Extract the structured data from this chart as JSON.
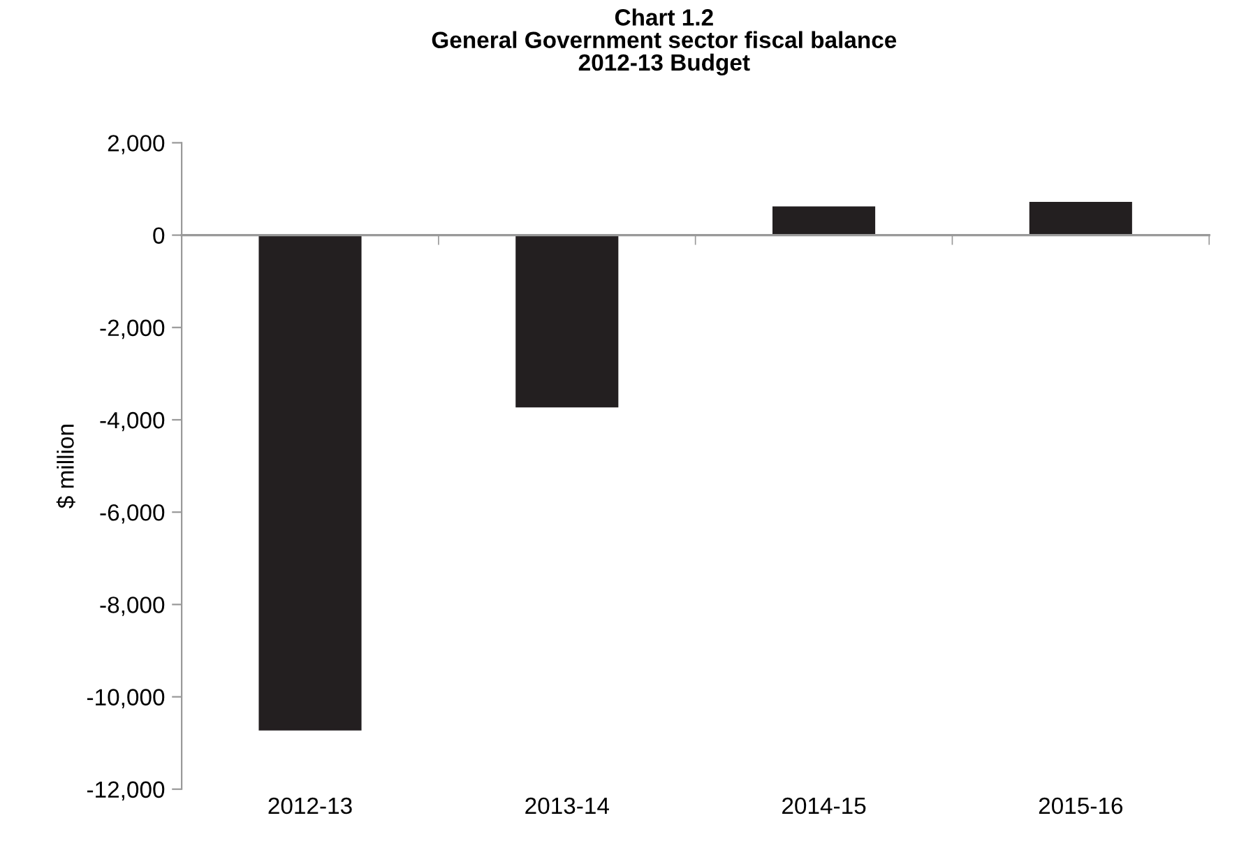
{
  "chart_data": {
    "type": "bar",
    "title": "Chart 1.2\nGeneral Government sector fiscal balance\n2012-13 Budget",
    "ylabel": "$ million",
    "categories": [
      "2012-13",
      "2013-14",
      "2014-15",
      "2015-16"
    ],
    "values": [
      -10730,
      -3730,
      620,
      720
    ],
    "color": "#231f20",
    "ylim": [
      -12000,
      2000
    ],
    "yticks": [
      {
        "value": -12000,
        "label": "-12,000"
      },
      {
        "value": -10000,
        "label": "-10,000"
      },
      {
        "value": -8000,
        "label": "-8,000"
      },
      {
        "value": -6000,
        "label": "-6,000"
      },
      {
        "value": -4000,
        "label": "-4,000"
      },
      {
        "value": -2000,
        "label": "-2,000"
      },
      0,
      {
        "value": 2000,
        "label": "2,000"
      }
    ]
  }
}
